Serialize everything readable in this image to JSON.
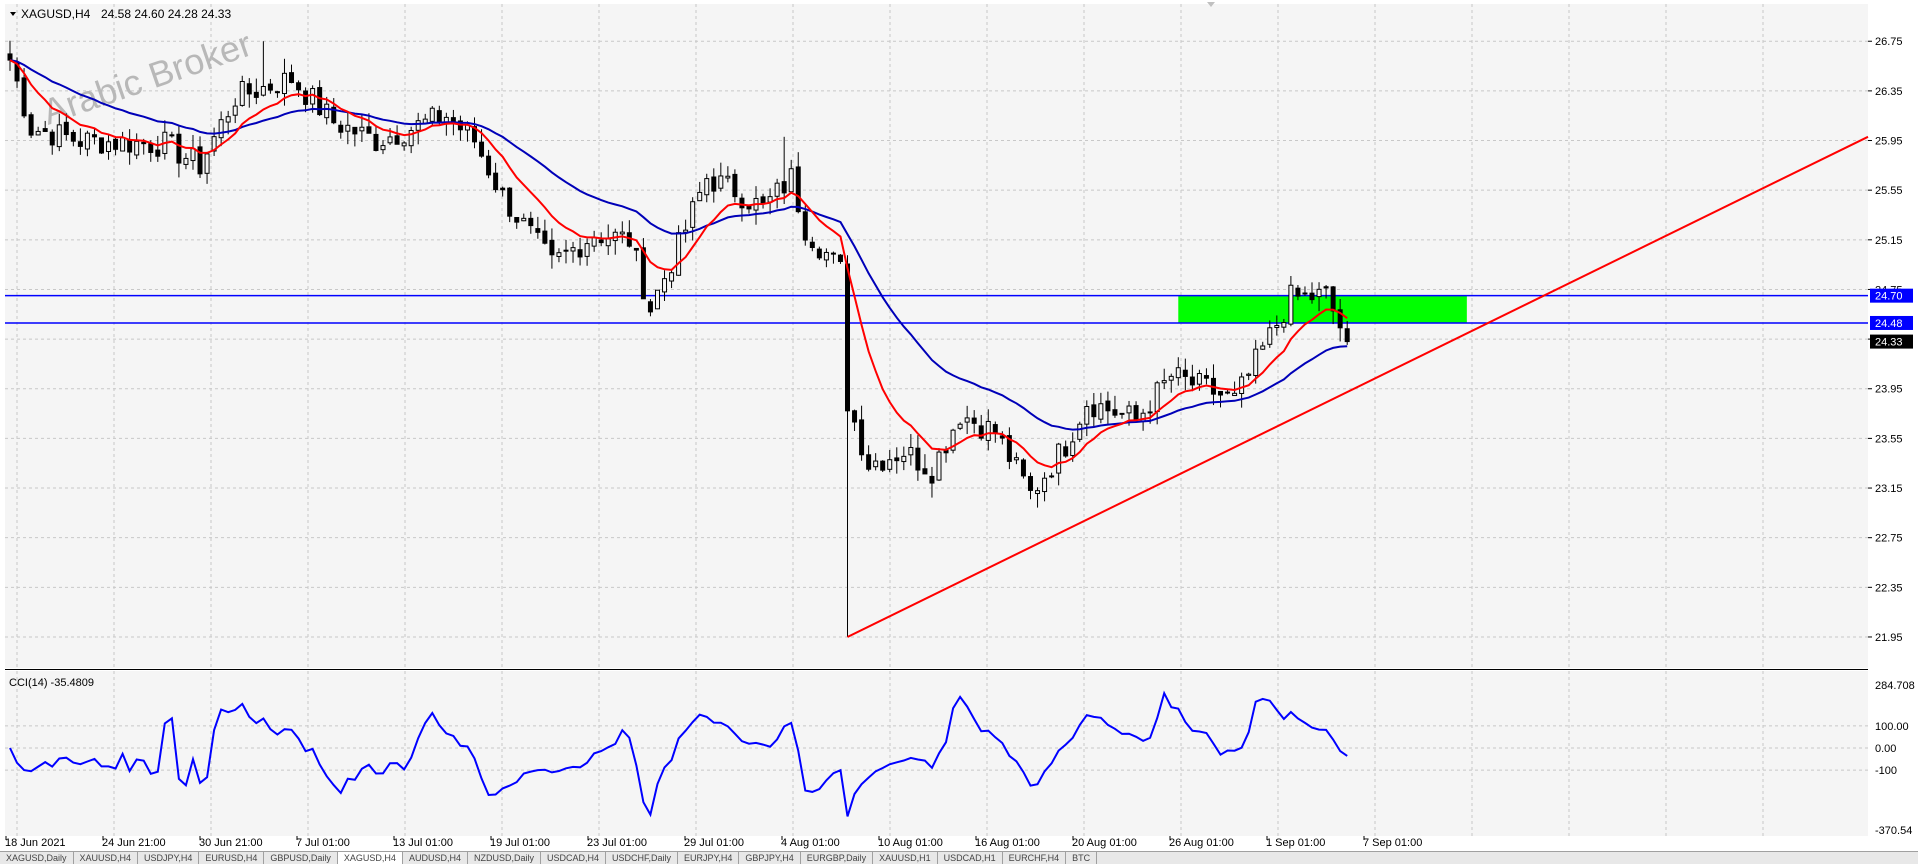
{
  "header": {
    "symbol_label": "XAGUSD,H4",
    "ohlc": "24.58 24.60 24.28 24.33"
  },
  "watermark": "Arabic Broker",
  "colors": {
    "background": "#f5f5f5",
    "grid": "#c8c8c8",
    "candles": "#000000",
    "fast_ma": "#ff0000",
    "slow_ma": "#0000b8",
    "trendline": "#ff0000",
    "hlines": "#0000ff",
    "zone": "#00ff00",
    "price_tag_bg": "#0000ff",
    "last_price_bg": "#000000"
  },
  "price_tags": [
    {
      "label": "24.70",
      "value": 24.7,
      "style": "level"
    },
    {
      "label": "24.48",
      "value": 24.48,
      "style": "level"
    },
    {
      "label": "24.33",
      "value": 24.33,
      "style": "last"
    }
  ],
  "tabs": [
    {
      "label": "XAGUSD,Daily"
    },
    {
      "label": "XAUUSD,H4"
    },
    {
      "label": "USDJPY,H4"
    },
    {
      "label": "EURUSD,H4"
    },
    {
      "label": "GBPUSD,Daily"
    },
    {
      "label": "XAGUSD,H4"
    },
    {
      "label": "AUDUSD,H4"
    },
    {
      "label": "NZDUSD,Daily"
    },
    {
      "label": "USDCAD,H4"
    },
    {
      "label": "USDCHF,Daily"
    },
    {
      "label": "EURJPY,H4"
    },
    {
      "label": "GBPJPY,H4"
    },
    {
      "label": "EURGBP,Daily"
    },
    {
      "label": "XAUUSD,H1"
    },
    {
      "label": "USDCAD,H1"
    },
    {
      "label": "EURCHF,H4"
    },
    {
      "label": "BTC"
    }
  ],
  "chart_data": [
    {
      "type": "candlestick",
      "title": "XAGUSD,H4",
      "x_tick_labels": [
        "18 Jun 2021",
        "24 Jun 21:00",
        "30 Jun 21:00",
        "7 Jul 01:00",
        "13 Jul 01:00",
        "19 Jul 01:00",
        "23 Jul 01:00",
        "29 Jul 01:00",
        "4 Aug 01:00",
        "10 Aug 01:00",
        "16 Aug 01:00",
        "20 Aug 01:00",
        "26 Aug 01:00",
        "1 Sep 01:00",
        "7 Sep 01:00"
      ],
      "y_ticks": [
        21.95,
        22.35,
        22.75,
        23.15,
        23.55,
        23.95,
        24.35,
        24.75,
        25.15,
        25.55,
        25.95,
        26.35,
        26.75
      ],
      "ylim": [
        21.7,
        27.05
      ],
      "grid": true,
      "bars": 264,
      "close_path": [
        [
          0,
          26.6
        ],
        [
          3,
          26.05
        ],
        [
          10,
          25.95
        ],
        [
          22,
          25.92
        ],
        [
          27,
          25.75
        ],
        [
          32,
          26.3
        ],
        [
          40,
          26.45
        ],
        [
          46,
          26.1
        ],
        [
          52,
          25.95
        ],
        [
          62,
          26.15
        ],
        [
          66,
          25.95
        ],
        [
          70,
          25.5
        ],
        [
          77,
          24.95
        ],
        [
          83,
          25.2
        ],
        [
          88,
          25.15
        ],
        [
          91,
          24.6
        ],
        [
          95,
          25.1
        ],
        [
          99,
          25.65
        ],
        [
          103,
          25.55
        ],
        [
          107,
          25.4
        ],
        [
          111,
          25.65
        ],
        [
          113,
          25.25
        ],
        [
          118,
          24.9
        ],
        [
          119,
          23.85
        ],
        [
          122,
          23.35
        ],
        [
          127,
          23.45
        ],
        [
          131,
          23.3
        ],
        [
          135,
          23.75
        ],
        [
          140,
          23.6
        ],
        [
          145,
          23.1
        ],
        [
          150,
          23.5
        ],
        [
          153,
          23.85
        ],
        [
          160,
          23.7
        ],
        [
          165,
          24.05
        ],
        [
          170,
          23.95
        ],
        [
          174,
          23.85
        ],
        [
          182,
          24.68
        ],
        [
          187,
          24.7
        ],
        [
          190,
          24.33
        ]
      ],
      "spikes": [
        {
          "bar": 119,
          "low": 21.95
        },
        {
          "bar": 110,
          "high": 25.98
        },
        {
          "bar": 36,
          "high": 26.75
        }
      ],
      "moving_averages": [
        {
          "color": "#ff0000",
          "period": 10
        },
        {
          "color": "#0000b8",
          "period": 30,
          "last_bar": 190
        }
      ],
      "trendline": {
        "from": {
          "bar": 119,
          "price": 21.95
        },
        "to": {
          "bar": 264,
          "price": 25.98
        }
      },
      "horizontal_lines": [
        24.7,
        24.48
      ],
      "zone": {
        "bar_from": 166,
        "bar_to": 207,
        "price_low": 24.48,
        "price_high": 24.7
      }
    },
    {
      "type": "line",
      "title": "CCI(14) -35.4809",
      "series": [
        {
          "name": "CCI(14)",
          "value": -35.4809
        }
      ],
      "y_ticks": [
        284.708,
        100.0,
        0.0,
        -100,
        -370.54
      ],
      "y_tick_labels": [
        "284.708",
        "100.00",
        "0.00",
        "-100",
        "-370.54"
      ],
      "ylim": [
        -370.54,
        284.708
      ],
      "grid": true
    }
  ]
}
